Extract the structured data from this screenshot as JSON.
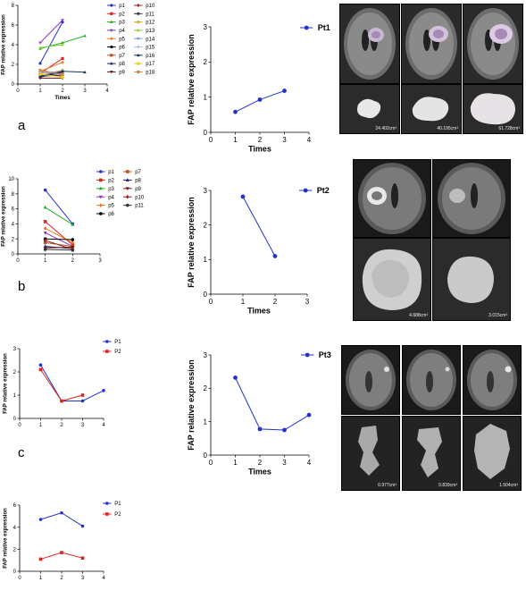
{
  "panel_letters": [
    "a",
    "b",
    "c"
  ],
  "scan_images": {
    "row1_volumes": [
      "24.402cm³",
      "40.195cm³",
      "61.728cm³"
    ],
    "row2_volumes": [
      "4.688cm³",
      "3.015cm³"
    ],
    "row3_volumes": [
      "0.977cm³",
      "0.839cm³",
      "1.504cm³"
    ]
  },
  "chart_data": [
    {
      "id": "a-left",
      "type": "line",
      "xlabel": "Times",
      "ylabel": "FAP relative expression",
      "xlim": [
        0,
        4
      ],
      "xticks": [
        0,
        1,
        2,
        3,
        4
      ],
      "ylim": [
        0,
        8
      ],
      "yticks": [
        0,
        2,
        4,
        6,
        8
      ],
      "legend_columns": 2,
      "series": [
        {
          "name": "p1",
          "x": [
            1,
            2
          ],
          "values": [
            2.1,
            6.3
          ],
          "color": "#2233cc",
          "marker": "circle"
        },
        {
          "name": "p2",
          "x": [
            1,
            2
          ],
          "values": [
            1.1,
            2.6
          ],
          "color": "#dd2222",
          "marker": "square"
        },
        {
          "name": "p3",
          "x": [
            1,
            2,
            3
          ],
          "values": [
            3.6,
            4.2,
            4.9
          ],
          "color": "#22aa22",
          "marker": "triangle"
        },
        {
          "name": "p4",
          "x": [
            1,
            2
          ],
          "values": [
            4.2,
            6.5
          ],
          "color": "#8833bb",
          "marker": "triangle-down"
        },
        {
          "name": "p5",
          "x": [
            1,
            2
          ],
          "values": [
            1.3,
            2.2
          ],
          "color": "#ee7722",
          "marker": "diamond"
        },
        {
          "name": "p6",
          "x": [
            1,
            2
          ],
          "values": [
            0.9,
            1.0
          ],
          "color": "#000000",
          "marker": "circle"
        },
        {
          "name": "p7",
          "x": [
            1,
            2
          ],
          "values": [
            1.0,
            0.8
          ],
          "color": "#bb5522",
          "marker": "square"
        },
        {
          "name": "p8",
          "x": [
            1,
            2
          ],
          "values": [
            0.7,
            1.2
          ],
          "color": "#1a1a66",
          "marker": "triangle"
        },
        {
          "name": "p9",
          "x": [
            1,
            2
          ],
          "values": [
            0.6,
            0.6
          ],
          "color": "#661111",
          "marker": "triangle-down"
        },
        {
          "name": "p10",
          "x": [
            1,
            2
          ],
          "values": [
            1.2,
            1.1
          ],
          "color": "#992222",
          "marker": "diamond"
        },
        {
          "name": "p11",
          "x": [
            1,
            2
          ],
          "values": [
            0.8,
            0.9
          ],
          "color": "#333333",
          "marker": "circle"
        },
        {
          "name": "p12",
          "x": [
            1,
            2
          ],
          "values": [
            0.9,
            1.4
          ],
          "color": "#ddaa22",
          "marker": "circle"
        },
        {
          "name": "p13",
          "x": [
            1,
            2
          ],
          "values": [
            3.7,
            4.0
          ],
          "color": "#88cc33",
          "marker": "triangle"
        },
        {
          "name": "p14",
          "x": [
            1,
            2
          ],
          "values": [
            1.1,
            1.3
          ],
          "color": "#7799dd",
          "marker": "triangle-down"
        },
        {
          "name": "p15",
          "x": [
            1,
            2
          ],
          "values": [
            1.2,
            0.9
          ],
          "color": "#aabbee",
          "marker": "diamond"
        },
        {
          "name": "p16",
          "x": [
            1,
            2,
            3
          ],
          "values": [
            0.8,
            1.3,
            1.2
          ],
          "color": "#113355",
          "marker": "triangle"
        },
        {
          "name": "p17",
          "x": [
            1,
            2
          ],
          "values": [
            1.0,
            0.7
          ],
          "color": "#eecc22",
          "marker": "square"
        },
        {
          "name": "p18",
          "x": [
            1,
            2
          ],
          "values": [
            1.4,
            1.0
          ],
          "color": "#cc8844",
          "marker": "square"
        }
      ]
    },
    {
      "id": "a-mid",
      "type": "line",
      "xlabel": "Times",
      "ylabel": "FAP relative expression",
      "xlim": [
        0,
        4
      ],
      "xticks": [
        0,
        1,
        2,
        3,
        4
      ],
      "ylim": [
        0,
        3
      ],
      "yticks": [
        0,
        1,
        2,
        3
      ],
      "legend_columns": 1,
      "series": [
        {
          "name": "Pt1",
          "x": [
            1,
            2,
            3
          ],
          "values": [
            0.58,
            0.93,
            1.18
          ],
          "color": "#2233cc",
          "marker": "circle"
        }
      ]
    },
    {
      "id": "b-left",
      "type": "line",
      "xlabel": "",
      "ylabel": "FAP relative expression",
      "xlim": [
        0,
        3
      ],
      "xticks": [
        0,
        1,
        2,
        3
      ],
      "ylim": [
        0,
        10
      ],
      "yticks": [
        0,
        2,
        4,
        6,
        8,
        10
      ],
      "legend_columns": 2,
      "series": [
        {
          "name": "p1",
          "x": [
            1,
            2
          ],
          "values": [
            8.5,
            4.0
          ],
          "color": "#2233cc",
          "marker": "circle"
        },
        {
          "name": "p2",
          "x": [
            1,
            2
          ],
          "values": [
            4.3,
            1.2
          ],
          "color": "#dd2222",
          "marker": "square"
        },
        {
          "name": "p3",
          "x": [
            1,
            2
          ],
          "values": [
            6.2,
            3.9
          ],
          "color": "#22aa22",
          "marker": "triangle"
        },
        {
          "name": "p4",
          "x": [
            1,
            2
          ],
          "values": [
            2.8,
            1.0
          ],
          "color": "#8833bb",
          "marker": "triangle-down"
        },
        {
          "name": "p5",
          "x": [
            1,
            2
          ],
          "values": [
            3.4,
            1.5
          ],
          "color": "#ee7722",
          "marker": "diamond"
        },
        {
          "name": "p6",
          "x": [
            1,
            2
          ],
          "values": [
            2.0,
            1.9
          ],
          "color": "#000000",
          "marker": "circle"
        },
        {
          "name": "p7",
          "x": [
            1,
            2
          ],
          "values": [
            1.5,
            1.0
          ],
          "color": "#bb5522",
          "marker": "square"
        },
        {
          "name": "p8",
          "x": [
            1,
            2
          ],
          "values": [
            1.0,
            0.7
          ],
          "color": "#1a1a66",
          "marker": "triangle"
        },
        {
          "name": "p9",
          "x": [
            1,
            2
          ],
          "values": [
            0.8,
            0.9
          ],
          "color": "#661111",
          "marker": "triangle-down"
        },
        {
          "name": "p10",
          "x": [
            1,
            2
          ],
          "values": [
            1.8,
            0.6
          ],
          "color": "#992222",
          "marker": "diamond"
        },
        {
          "name": "p11",
          "x": [
            1,
            2
          ],
          "values": [
            0.6,
            0.5
          ],
          "color": "#333333",
          "marker": "circle"
        }
      ]
    },
    {
      "id": "b-mid",
      "type": "line",
      "xlabel": "Times",
      "ylabel": "FAP relative expression",
      "xlim": [
        0,
        3
      ],
      "xticks": [
        0,
        1,
        2,
        3
      ],
      "ylim": [
        0,
        3
      ],
      "yticks": [
        0,
        1,
        2,
        3
      ],
      "legend_columns": 1,
      "series": [
        {
          "name": "Pt2",
          "x": [
            1,
            2
          ],
          "values": [
            2.82,
            1.1
          ],
          "color": "#2233cc",
          "marker": "circle"
        }
      ]
    },
    {
      "id": "c-left",
      "type": "line",
      "xlabel": "",
      "ylabel": "FAP relative expression",
      "xlim": [
        0,
        4
      ],
      "xticks": [
        0,
        1,
        2,
        3,
        4
      ],
      "ylim": [
        0,
        3
      ],
      "yticks": [
        0,
        1,
        2,
        3
      ],
      "legend_columns": 1,
      "series": [
        {
          "name": "P1",
          "x": [
            1,
            2,
            3,
            4
          ],
          "values": [
            2.3,
            0.75,
            0.75,
            1.2
          ],
          "color": "#2233cc",
          "marker": "circle"
        },
        {
          "name": "P2",
          "x": [
            1,
            2,
            3
          ],
          "values": [
            2.1,
            0.75,
            1.0
          ],
          "color": "#dd2222",
          "marker": "square"
        }
      ]
    },
    {
      "id": "c-mid",
      "type": "line",
      "xlabel": "Times",
      "ylabel": "FAP relative expression",
      "xlim": [
        0,
        4
      ],
      "xticks": [
        0,
        1,
        2,
        3,
        4
      ],
      "ylim": [
        0,
        3
      ],
      "yticks": [
        0,
        1,
        2,
        3
      ],
      "legend_columns": 1,
      "series": [
        {
          "name": "Pt3",
          "x": [
            1,
            2,
            3,
            4
          ],
          "values": [
            2.32,
            0.78,
            0.75,
            1.2
          ],
          "color": "#2233cc",
          "marker": "circle"
        }
      ]
    },
    {
      "id": "d-left",
      "type": "line",
      "xlabel": "",
      "ylabel": "FAP relative expression",
      "xlim": [
        0,
        4
      ],
      "xticks": [
        0,
        1,
        2,
        3,
        4
      ],
      "ylim": [
        0,
        6
      ],
      "yticks": [
        0,
        2,
        4,
        6
      ],
      "legend_columns": 1,
      "series": [
        {
          "name": "P1",
          "x": [
            1,
            2,
            3
          ],
          "values": [
            4.7,
            5.3,
            4.1
          ],
          "color": "#2233cc",
          "marker": "circle"
        },
        {
          "name": "P2",
          "x": [
            1,
            2,
            3
          ],
          "values": [
            1.1,
            1.7,
            1.2
          ],
          "color": "#dd2222",
          "marker": "square"
        }
      ]
    }
  ]
}
